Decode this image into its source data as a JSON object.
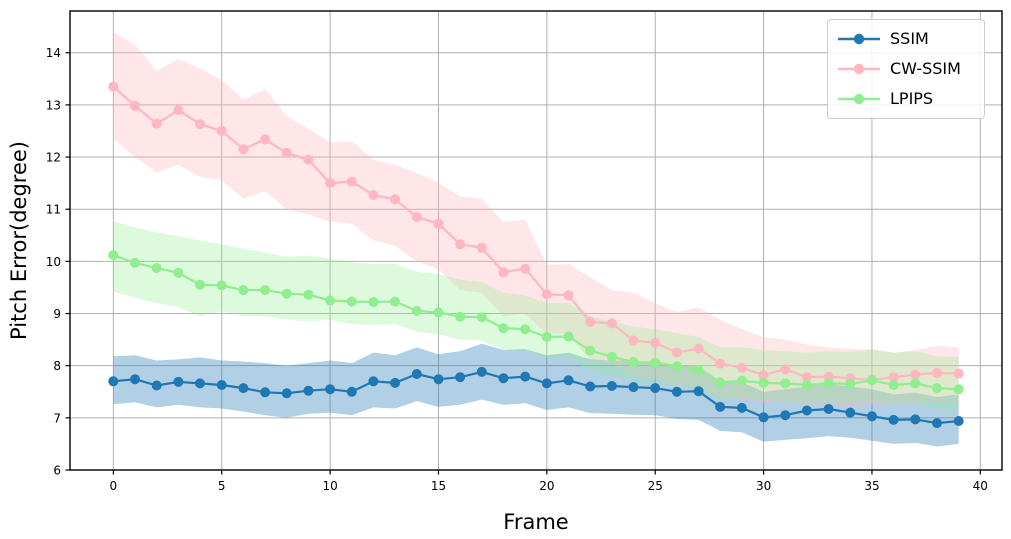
{
  "chart_data": {
    "type": "line",
    "title": "",
    "xlabel": "Frame",
    "ylabel": "Pitch Error(degree)",
    "xlim": [
      -2,
      41
    ],
    "ylim": [
      6,
      14.8
    ],
    "xticks": [
      0,
      5,
      10,
      15,
      20,
      25,
      30,
      35,
      40
    ],
    "yticks": [
      6,
      7,
      8,
      9,
      10,
      11,
      12,
      13,
      14
    ],
    "grid": true,
    "grid_color": "#b0b0b0",
    "legend_position": "upper right",
    "x": [
      0,
      1,
      2,
      3,
      4,
      5,
      6,
      7,
      8,
      9,
      10,
      11,
      12,
      13,
      14,
      15,
      16,
      17,
      18,
      19,
      20,
      21,
      22,
      23,
      24,
      25,
      26,
      27,
      28,
      29,
      30,
      31,
      32,
      33,
      34,
      35,
      36,
      37,
      38,
      39
    ],
    "series": [
      {
        "name": "SSIM",
        "color": "#1f77b4",
        "band_opacity": 0.35,
        "values": [
          7.7,
          7.74,
          7.62,
          7.69,
          7.66,
          7.63,
          7.57,
          7.49,
          7.47,
          7.52,
          7.55,
          7.5,
          7.7,
          7.67,
          7.84,
          7.74,
          7.78,
          7.88,
          7.76,
          7.79,
          7.66,
          7.72,
          7.6,
          7.61,
          7.59,
          7.57,
          7.5,
          7.51,
          7.21,
          7.19,
          7.01,
          7.05,
          7.14,
          7.17,
          7.1,
          7.03,
          6.96,
          6.97,
          6.9,
          6.94
        ],
        "upper": [
          8.18,
          8.2,
          8.1,
          8.12,
          8.16,
          8.1,
          8.08,
          8.05,
          8.0,
          8.05,
          8.1,
          8.05,
          8.25,
          8.2,
          8.35,
          8.22,
          8.28,
          8.42,
          8.3,
          8.32,
          8.2,
          8.25,
          8.12,
          8.1,
          8.1,
          8.05,
          8.0,
          8.0,
          7.7,
          7.68,
          7.5,
          7.55,
          7.6,
          7.65,
          7.6,
          7.55,
          7.45,
          7.48,
          7.4,
          7.45
        ],
        "lower": [
          7.26,
          7.3,
          7.2,
          7.25,
          7.2,
          7.18,
          7.12,
          7.05,
          7.0,
          7.08,
          7.1,
          7.05,
          7.2,
          7.18,
          7.32,
          7.21,
          7.25,
          7.35,
          7.25,
          7.28,
          7.15,
          7.2,
          7.09,
          7.08,
          7.06,
          7.05,
          6.98,
          6.96,
          6.75,
          6.72,
          6.54,
          6.58,
          6.61,
          6.65,
          6.62,
          6.56,
          6.5,
          6.52,
          6.45,
          6.5
        ]
      },
      {
        "name": "CW-SSIM",
        "color": "#ffb6c1",
        "band_opacity": 0.35,
        "values": [
          13.35,
          12.98,
          12.64,
          12.9,
          12.63,
          12.5,
          12.15,
          12.34,
          12.08,
          11.95,
          11.5,
          11.53,
          11.27,
          11.19,
          10.85,
          10.72,
          10.33,
          10.26,
          9.79,
          9.86,
          9.37,
          9.35,
          8.84,
          8.81,
          8.48,
          8.44,
          8.25,
          8.33,
          8.04,
          7.96,
          7.82,
          7.93,
          7.78,
          7.79,
          7.76,
          7.73,
          7.78,
          7.83,
          7.86,
          7.85
        ],
        "upper": [
          14.4,
          14.15,
          13.65,
          13.88,
          13.7,
          13.48,
          13.1,
          13.3,
          12.78,
          12.55,
          12.28,
          12.3,
          11.95,
          11.85,
          11.7,
          11.5,
          11.25,
          11.2,
          10.75,
          10.8,
          9.93,
          9.95,
          9.7,
          9.45,
          9.4,
          9.2,
          9.03,
          9.12,
          8.88,
          8.7,
          8.55,
          8.5,
          8.4,
          8.35,
          8.32,
          8.3,
          8.25,
          8.3,
          8.38,
          8.35
        ],
        "lower": [
          12.35,
          12.0,
          11.7,
          11.85,
          11.62,
          11.55,
          11.2,
          11.35,
          11.0,
          10.9,
          10.76,
          10.72,
          10.4,
          10.3,
          10.0,
          9.85,
          9.45,
          9.4,
          8.95,
          9.0,
          8.6,
          8.6,
          8.1,
          8.05,
          7.8,
          7.75,
          7.6,
          7.62,
          7.4,
          7.35,
          7.28,
          7.32,
          7.25,
          7.25,
          7.22,
          7.25,
          7.25,
          7.28,
          7.3,
          7.32
        ]
      },
      {
        "name": "LPIPS",
        "color": "#90ee90",
        "band_opacity": 0.3,
        "values": [
          10.12,
          9.97,
          9.87,
          9.78,
          9.55,
          9.54,
          9.45,
          9.45,
          9.38,
          9.36,
          9.25,
          9.23,
          9.22,
          9.23,
          9.05,
          9.02,
          8.94,
          8.93,
          8.72,
          8.7,
          8.55,
          8.56,
          8.29,
          8.17,
          8.07,
          8.06,
          7.99,
          7.92,
          7.68,
          7.71,
          7.67,
          7.66,
          7.63,
          7.66,
          7.65,
          7.72,
          7.63,
          7.66,
          7.57,
          7.55
        ],
        "upper": [
          10.77,
          10.65,
          10.56,
          10.48,
          10.4,
          10.33,
          10.24,
          10.17,
          10.09,
          10.11,
          10.05,
          9.98,
          9.95,
          9.95,
          9.8,
          9.75,
          9.65,
          9.6,
          9.4,
          9.35,
          9.2,
          9.2,
          8.95,
          8.85,
          8.75,
          8.7,
          8.62,
          8.55,
          8.35,
          8.35,
          8.3,
          8.28,
          8.25,
          8.28,
          8.26,
          8.32,
          8.25,
          8.28,
          8.18,
          8.16
        ],
        "lower": [
          9.42,
          9.3,
          9.2,
          9.12,
          8.95,
          9.04,
          8.95,
          8.95,
          8.88,
          8.85,
          8.88,
          8.8,
          8.78,
          8.8,
          8.65,
          8.6,
          8.5,
          8.48,
          8.3,
          8.28,
          8.15,
          8.15,
          7.9,
          7.8,
          7.7,
          7.68,
          7.6,
          7.55,
          7.35,
          7.38,
          7.33,
          7.32,
          7.28,
          7.3,
          7.28,
          7.33,
          7.25,
          7.28,
          7.18,
          7.15
        ]
      }
    ]
  }
}
